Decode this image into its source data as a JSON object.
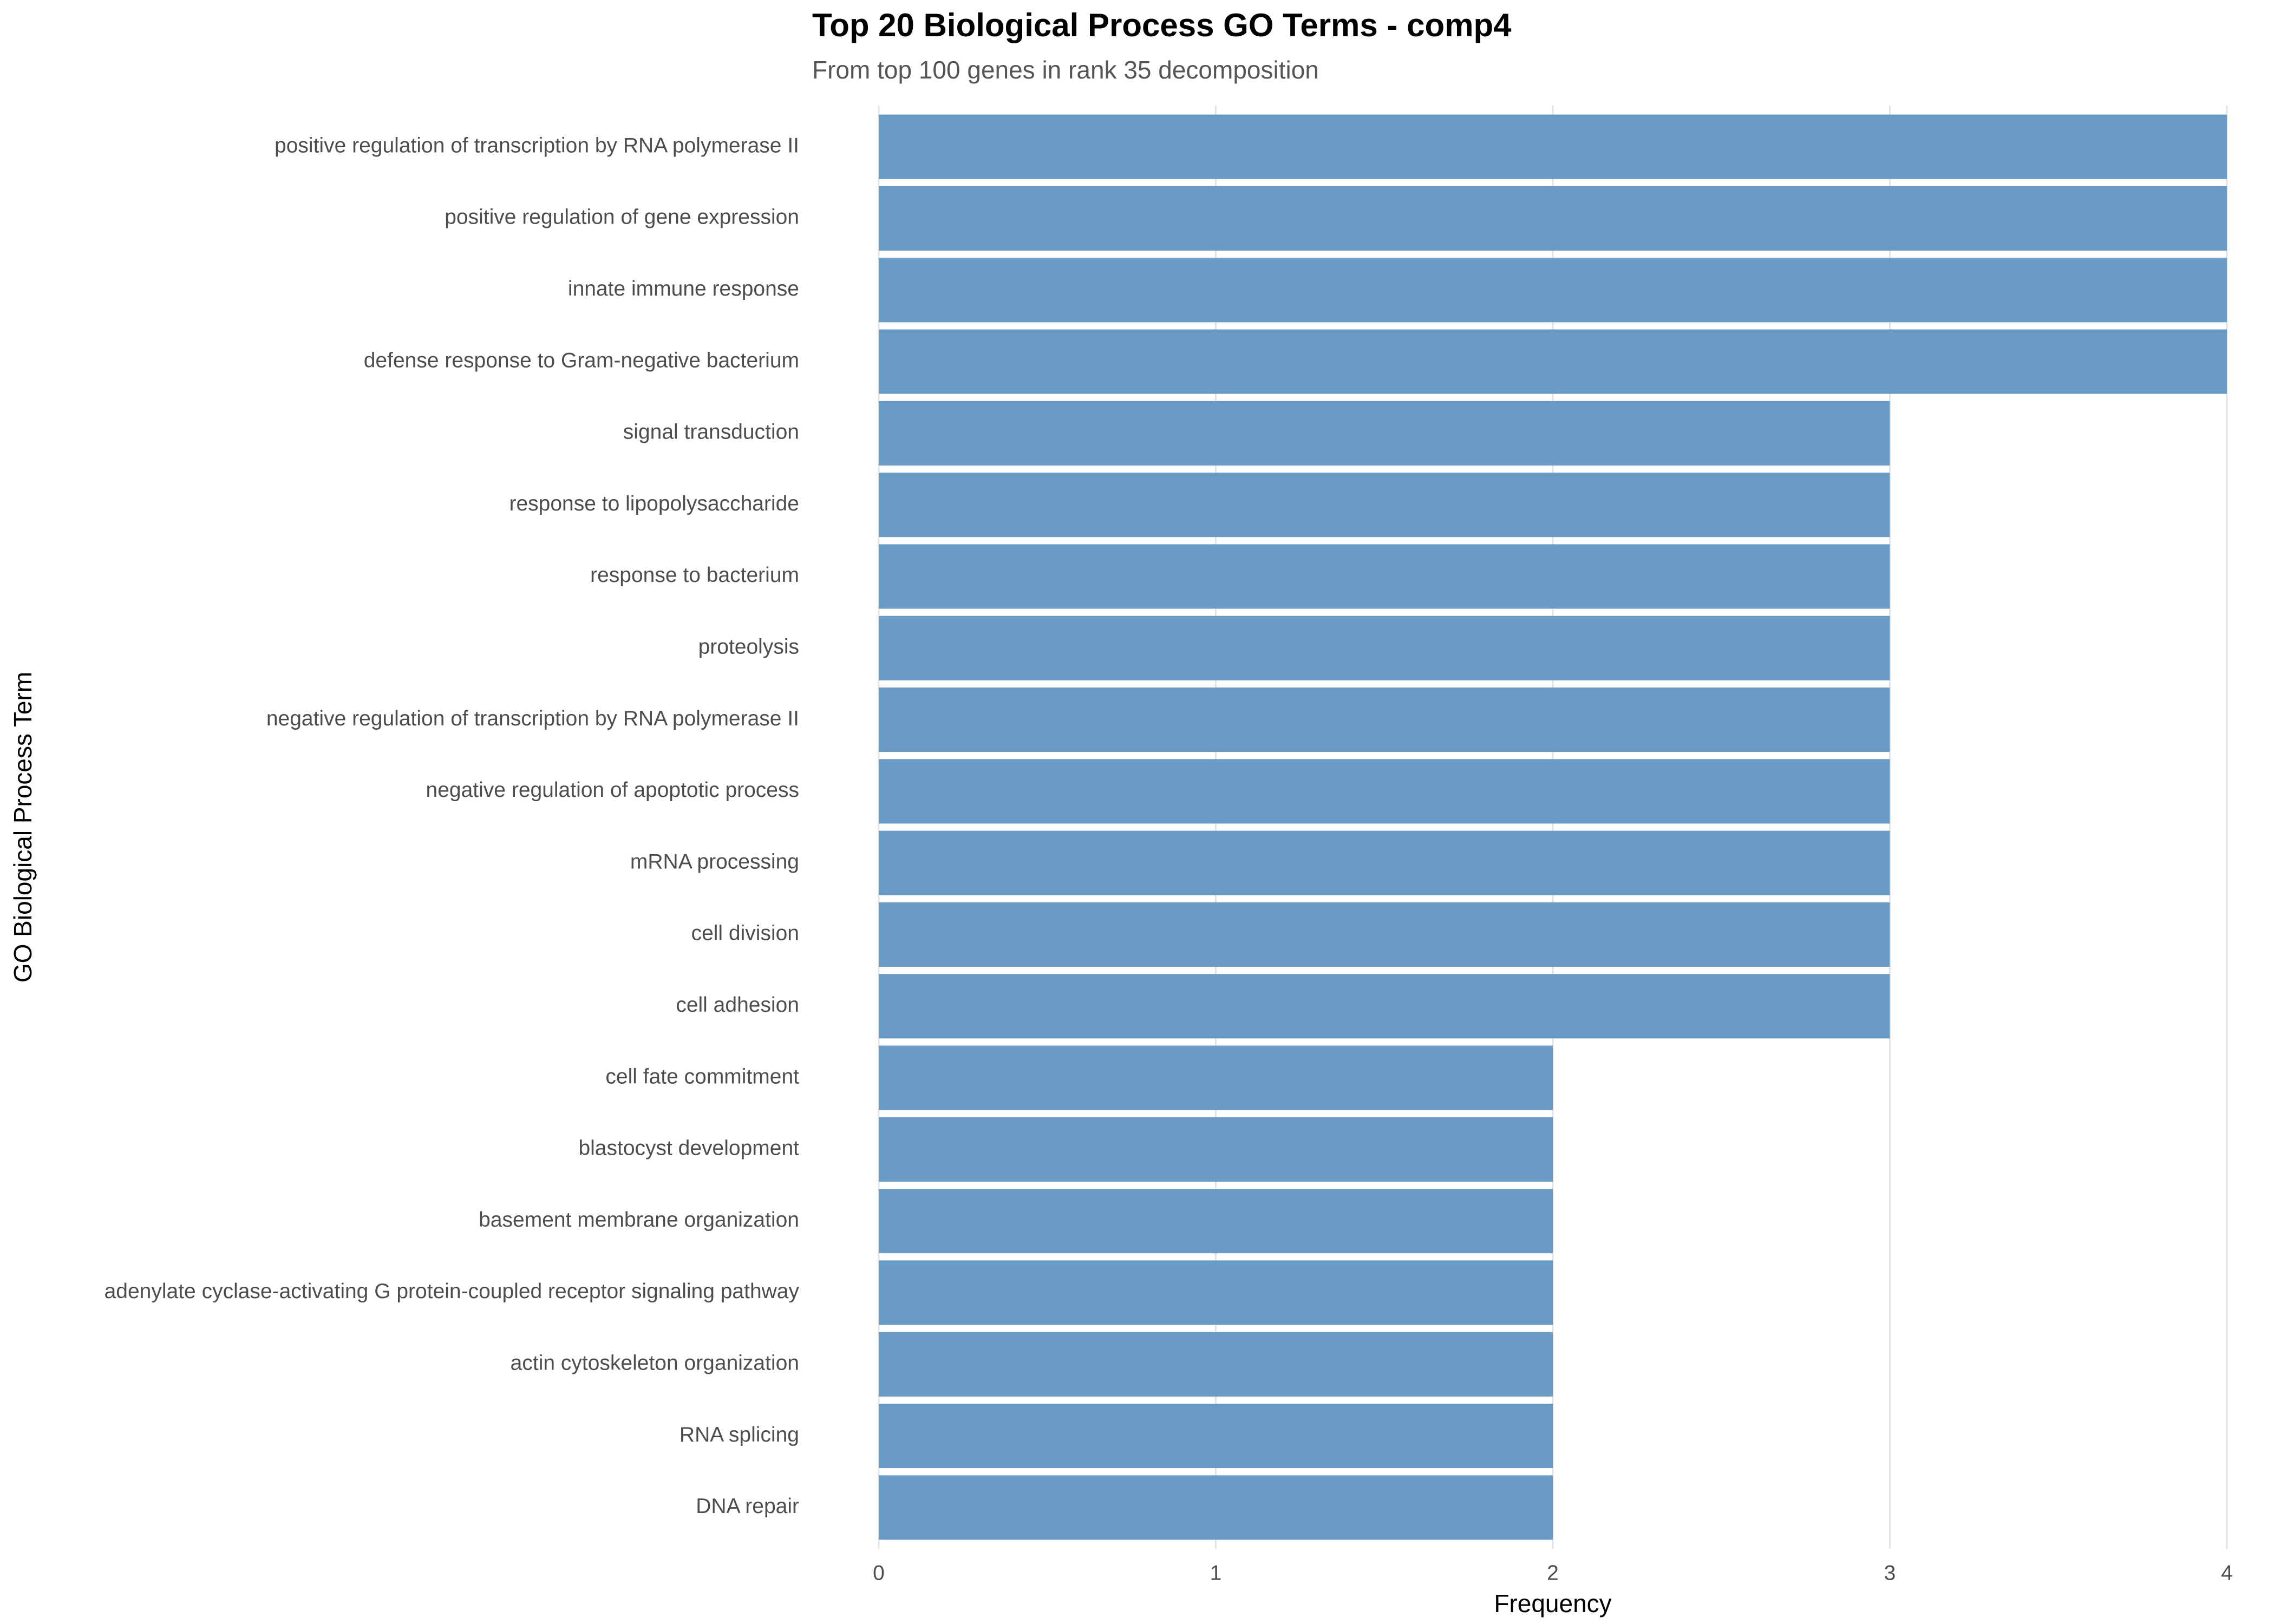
{
  "chart_data": {
    "type": "bar",
    "horizontal": true,
    "title": "Top 20 Biological Process GO Terms - comp4",
    "subtitle": "From top 100 genes in rank 35 decomposition",
    "x_label": "Frequency",
    "y_label": "GO Biological Process Term",
    "categories": [
      "positive regulation of transcription by RNA polymerase II",
      "positive regulation of gene expression",
      "innate immune response",
      "defense response to Gram-negative bacterium",
      "signal transduction",
      "response to lipopolysaccharide",
      "response to bacterium",
      "proteolysis",
      "negative regulation of transcription by RNA polymerase II",
      "negative regulation of apoptotic process",
      "mRNA processing",
      "cell division",
      "cell adhesion",
      "cell fate commitment",
      "blastocyst development",
      "basement membrane organization",
      "adenylate cyclase-activating G protein-coupled receptor signaling pathway",
      "actin cytoskeleton organization",
      "RNA splicing",
      "DNA repair"
    ],
    "values": [
      4,
      4,
      4,
      4,
      3,
      3,
      3,
      3,
      3,
      3,
      3,
      3,
      3,
      2,
      2,
      2,
      2,
      2,
      2,
      2
    ],
    "color": "#6a9bc4",
    "xlim": [
      0,
      4
    ],
    "xticks": [
      0,
      1,
      2,
      3,
      4
    ],
    "grid": true
  }
}
